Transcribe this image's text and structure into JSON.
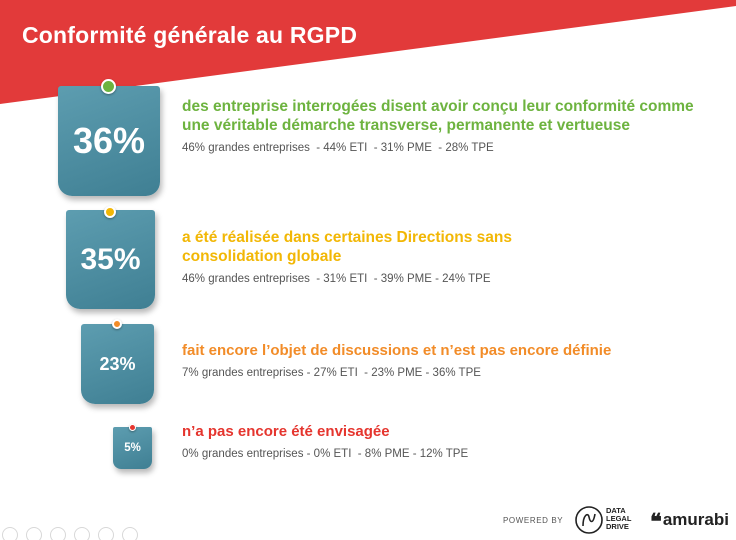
{
  "title": "Conformité générale au RGPD",
  "colors": {
    "banner_red": "#e23a3a",
    "tag_blue": "#4a8a9e",
    "green": "#6db33f",
    "yellow": "#f2b705",
    "orange": "#f28c28",
    "red": "#e5352e"
  },
  "items": [
    {
      "percent": "36%",
      "percent_value": 36,
      "pin_color": "green",
      "headline": "des entreprise interrogées disent avoir conçu leur conformité comme une véritable démarche transverse, permanente et vertueuse",
      "detail": "46% grandes entreprises  - 44% ETI  - 31% PME  - 28% TPE"
    },
    {
      "percent": "35%",
      "percent_value": 35,
      "pin_color": "yellow",
      "headline": "a été réalisée dans certaines Directions sans consolidation globale",
      "detail": "46% grandes entreprises  - 31% ETI  - 39% PME - 24% TPE"
    },
    {
      "percent": "23%",
      "percent_value": 23,
      "pin_color": "orange",
      "headline": "fait encore l’objet de discussions et n’est pas encore définie",
      "detail": "7% grandes entreprises - 27% ETI  - 23% PME - 36% TPE"
    },
    {
      "percent": "5%",
      "percent_value": 5,
      "pin_color": "red",
      "headline": "n’a pas encore été envisagée",
      "detail": "0% grandes entreprises - 0% ETI  - 8% PME - 12% TPE"
    }
  ],
  "footer": {
    "powered_by": "POWERED BY",
    "logo1_icon": "data-legal-drive-logo",
    "logo1_lines": [
      "DATA",
      "LEGAL",
      "DRIVE"
    ],
    "logo2_quote": "❝",
    "logo2_text": "amurabi"
  },
  "toolbar_icons": [
    "back-icon",
    "forward-icon",
    "pen-icon",
    "slides-icon",
    "zoom-icon",
    "more-icon"
  ]
}
